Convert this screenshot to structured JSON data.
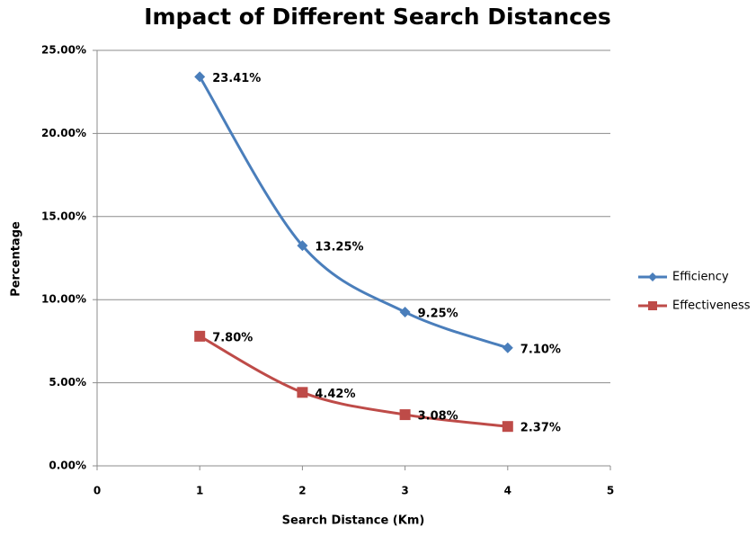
{
  "chart_data": {
    "type": "line",
    "title": "Impact of Different Search Distances",
    "x_label": "Search Distance (Km)",
    "y_label": "Percentage",
    "x": [
      1,
      2,
      3,
      4
    ],
    "series": [
      {
        "name": "Efficiency",
        "color": "#4a7ebb",
        "marker": "diamond",
        "values": [
          23.41,
          13.25,
          9.25,
          7.1
        ],
        "value_labels": [
          "23.41%",
          "13.25%",
          "9.25%",
          "7.10%"
        ]
      },
      {
        "name": "Effectiveness",
        "color": "#be4b48",
        "marker": "square",
        "values": [
          7.8,
          4.42,
          3.08,
          2.37
        ],
        "value_labels": [
          "7.80%",
          "4.42%",
          "3.08%",
          "2.37%"
        ]
      }
    ],
    "xlim": [
      0,
      5
    ],
    "xticks": [
      0,
      1,
      2,
      3,
      4,
      5
    ],
    "ylim": [
      0,
      25
    ],
    "yticks": [
      {
        "value": 0,
        "label": "0.00%"
      },
      {
        "value": 5,
        "label": "5.00%"
      },
      {
        "value": 10,
        "label": "10.00%"
      },
      {
        "value": 15,
        "label": "15.00%"
      },
      {
        "value": 20,
        "label": "20.00%"
      },
      {
        "value": 25,
        "label": "25.00%"
      }
    ],
    "grid": true,
    "smooth": true,
    "legend": "right"
  }
}
